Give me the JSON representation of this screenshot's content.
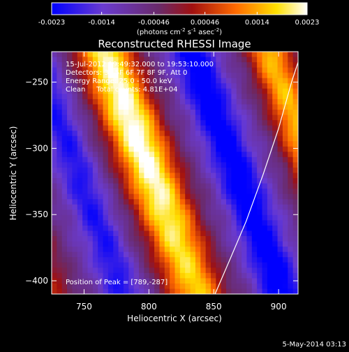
{
  "chart_data": {
    "type": "heatmap",
    "title": "Reconstructed RHESSI Image",
    "xlabel": "Heliocentric X (arcsec)",
    "ylabel": "Heliocentric Y (arcsec)",
    "xlim": [
      725,
      915
    ],
    "ylim": [
      -410,
      -227
    ],
    "x_ticks": [
      750,
      800,
      850,
      900
    ],
    "y_ticks": [
      -250,
      -300,
      -350,
      -400
    ],
    "colorbar": {
      "range": [
        -0.0023,
        0.0023
      ],
      "tick_labels": [
        "-0.0023",
        "-0.0014",
        "-0.00046",
        "0.00046",
        "0.0014",
        "0.0023"
      ],
      "label_main": "(photons cm",
      "label_exp1": "-2",
      "label_mid1": " s",
      "label_exp2": "-1",
      "label_mid2": " asec",
      "label_exp3": "-2",
      "label_end": ")",
      "colors": [
        "#0000ff",
        "#6a3bd0",
        "#6a2a6a",
        "#a01010",
        "#ff6a00",
        "#ffe000",
        "#ffffff"
      ]
    },
    "info": {
      "time": "15-Jul-2012 19:49:32.000 to 19:53:10.000",
      "detectors": "Detectors: 3F 5F 6F 7F 8F 9F, Att 0",
      "energy": "Energy Range: 25.0 - 50.0 keV",
      "clean": "Clean     Total counts: 4.81E+04"
    },
    "peak_label": "Position of Peak = [789,-287]",
    "peak": [
      789,
      -287
    ],
    "limb_curve": [
      [
        851,
        -410
      ],
      [
        862,
        -385
      ],
      [
        875,
        -355
      ],
      [
        888,
        -320
      ],
      [
        900,
        -285
      ],
      [
        910,
        -250
      ],
      [
        915,
        -235
      ]
    ]
  },
  "footer": {
    "date": "5-May-2014 03:13"
  }
}
